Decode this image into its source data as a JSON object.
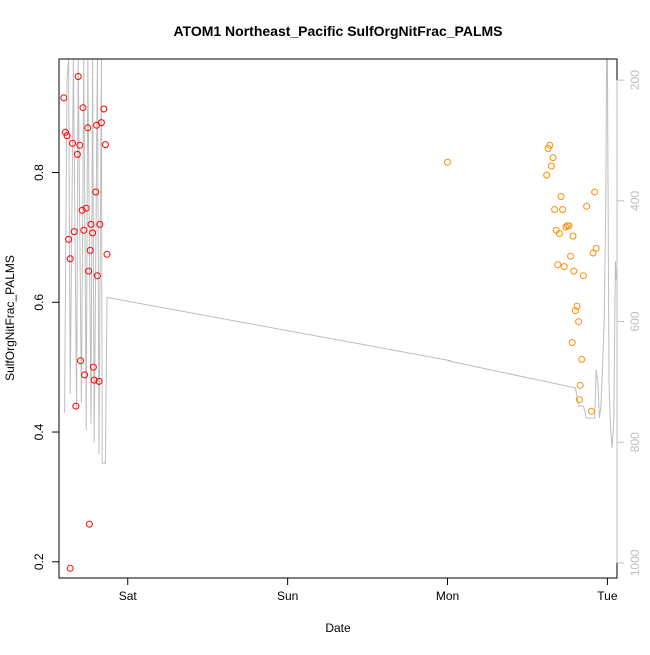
{
  "chart_data": {
    "type": "scatter",
    "title": "ATOM1 Northeast_Pacific SulfOrgNitFrac_PALMS",
    "xlabel": "Date",
    "ylabel": "SulfOrgNitFrac_PALMS",
    "x_unit": "days since Fri 00:00",
    "x_ticks": [
      {
        "value": 1,
        "label": "Sat"
      },
      {
        "value": 2,
        "label": "Sun"
      },
      {
        "value": 3,
        "label": "Mon"
      },
      {
        "value": 4,
        "label": "Tue"
      }
    ],
    "xlim": [
      0.57,
      4.06
    ],
    "y_ticks": [
      0.2,
      0.4,
      0.6,
      0.8
    ],
    "ylim": [
      0.175,
      0.975
    ],
    "y2_ticks": [
      200,
      400,
      600,
      800,
      1000
    ],
    "y2lim": [
      1025,
      165
    ],
    "y2_color": "#bebebe",
    "grid": false,
    "series": [
      {
        "color": "#ff0000",
        "points": [
          [
            0.6,
            0.915
          ],
          [
            0.61,
            0.862
          ],
          [
            0.62,
            0.857
          ],
          [
            0.63,
            0.697
          ],
          [
            0.64,
            0.667
          ],
          [
            0.64,
            0.19
          ],
          [
            0.655,
            0.845
          ],
          [
            0.665,
            0.709
          ],
          [
            0.675,
            0.44
          ],
          [
            0.685,
            0.828
          ],
          [
            0.69,
            0.948
          ],
          [
            0.7,
            0.842
          ],
          [
            0.705,
            0.51
          ],
          [
            0.715,
            0.742
          ],
          [
            0.72,
            0.9
          ],
          [
            0.725,
            0.711
          ],
          [
            0.73,
            0.488
          ],
          [
            0.74,
            0.745
          ],
          [
            0.75,
            0.869
          ],
          [
            0.755,
            0.648
          ],
          [
            0.76,
            0.258
          ],
          [
            0.765,
            0.68
          ],
          [
            0.77,
            0.72
          ],
          [
            0.78,
            0.707
          ],
          [
            0.785,
            0.5
          ],
          [
            0.79,
            0.48
          ],
          [
            0.8,
            0.77
          ],
          [
            0.805,
            0.873
          ],
          [
            0.81,
            0.641
          ],
          [
            0.82,
            0.478
          ],
          [
            0.825,
            0.72
          ],
          [
            0.835,
            0.877
          ],
          [
            0.85,
            0.898
          ],
          [
            0.86,
            0.843
          ],
          [
            0.87,
            0.674
          ]
        ]
      },
      {
        "color": "#ff8c00",
        "points": [
          [
            3.0,
            0.816
          ],
          [
            3.62,
            0.796
          ],
          [
            3.63,
            0.837
          ],
          [
            3.64,
            0.842
          ],
          [
            3.65,
            0.81
          ],
          [
            3.66,
            0.823
          ],
          [
            3.67,
            0.743
          ],
          [
            3.68,
            0.711
          ],
          [
            3.69,
            0.658
          ],
          [
            3.7,
            0.706
          ],
          [
            3.71,
            0.763
          ],
          [
            3.72,
            0.743
          ],
          [
            3.73,
            0.655
          ],
          [
            3.74,
            0.716
          ],
          [
            3.75,
            0.718
          ],
          [
            3.76,
            0.718
          ],
          [
            3.77,
            0.671
          ],
          [
            3.78,
            0.538
          ],
          [
            3.785,
            0.702
          ],
          [
            3.79,
            0.648
          ],
          [
            3.8,
            0.587
          ],
          [
            3.81,
            0.594
          ],
          [
            3.82,
            0.57
          ],
          [
            3.825,
            0.45
          ],
          [
            3.83,
            0.472
          ],
          [
            3.84,
            0.512
          ],
          [
            3.85,
            0.641
          ],
          [
            3.87,
            0.748
          ],
          [
            3.9,
            0.432
          ],
          [
            3.91,
            0.676
          ],
          [
            3.92,
            0.77
          ],
          [
            3.93,
            0.683
          ]
        ]
      },
      {
        "color": "#bebebe",
        "axis": "right",
        "style": "line",
        "points": [
          [
            0.6,
            750
          ],
          [
            0.605,
            750
          ],
          [
            0.62,
            200
          ],
          [
            0.63,
            165
          ],
          [
            0.64,
            720
          ],
          [
            0.66,
            165
          ],
          [
            0.68,
            745
          ],
          [
            0.69,
            165
          ],
          [
            0.71,
            735
          ],
          [
            0.725,
            165
          ],
          [
            0.74,
            780
          ],
          [
            0.75,
            165
          ],
          [
            0.77,
            770
          ],
          [
            0.78,
            165
          ],
          [
            0.79,
            800
          ],
          [
            0.81,
            165
          ],
          [
            0.82,
            820
          ],
          [
            0.835,
            165
          ],
          [
            0.84,
            835
          ],
          [
            0.86,
            835
          ],
          [
            0.87,
            560
          ],
          [
            3.02,
            665
          ],
          [
            3.0,
            665
          ],
          [
            3.8,
            710
          ],
          [
            3.82,
            740
          ],
          [
            3.85,
            740
          ],
          [
            3.87,
            760
          ],
          [
            3.92,
            760
          ],
          [
            3.93,
            680
          ],
          [
            3.94,
            700
          ],
          [
            3.95,
            760
          ],
          [
            3.96,
            740
          ],
          [
            3.98,
            600
          ],
          [
            3.99,
            400
          ],
          [
            3.995,
            165
          ],
          [
            4.0,
            165
          ],
          [
            4.01,
            700
          ],
          [
            4.02,
            780
          ],
          [
            4.03,
            810
          ],
          [
            4.04,
            760
          ],
          [
            4.05,
            500
          ],
          [
            4.055,
            530
          ]
        ]
      }
    ]
  }
}
